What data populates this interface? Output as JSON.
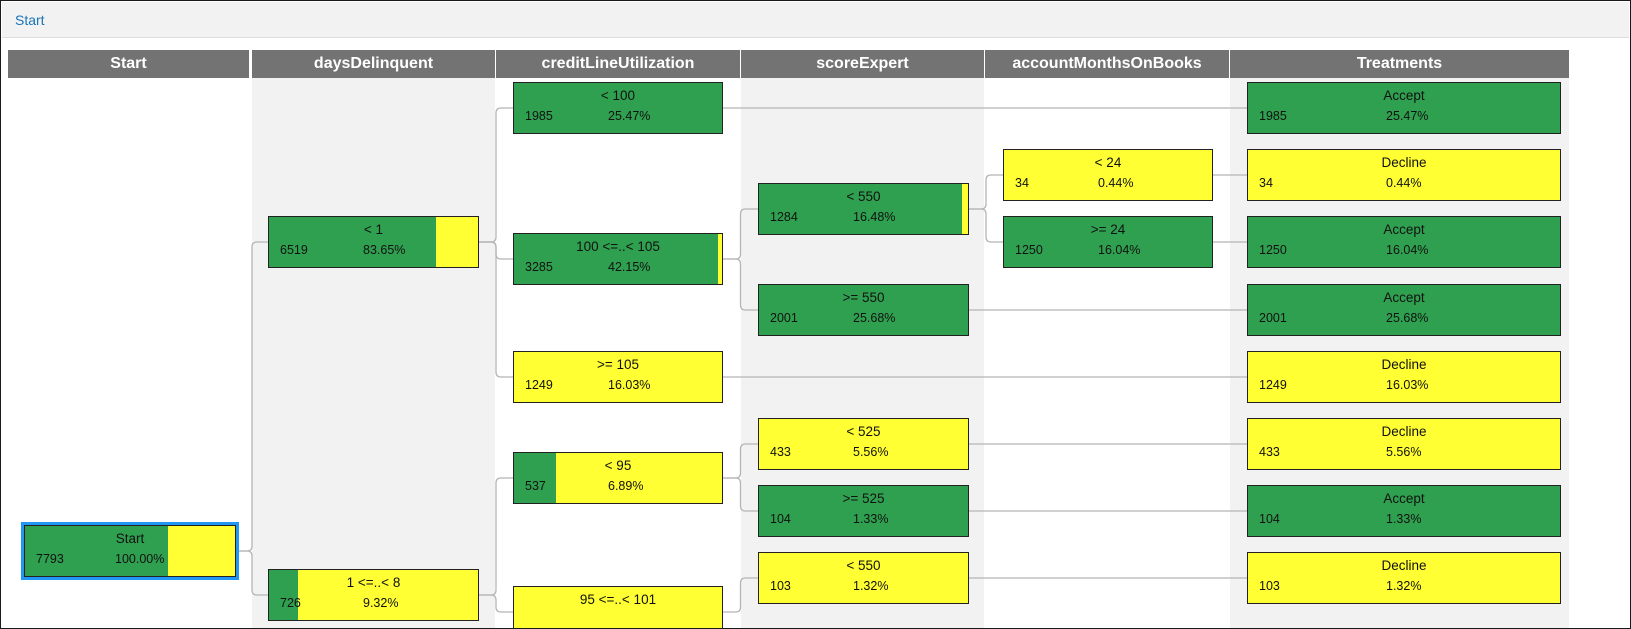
{
  "breadcrumb": {
    "label": "Start"
  },
  "colors": {
    "accept": "#2fa04f",
    "decline": "#ffff33",
    "header": "#737373",
    "link": "#b5b5b5",
    "selected": "#2196f3"
  },
  "columns": [
    {
      "id": "start",
      "label": "Start"
    },
    {
      "id": "daysDelinquent",
      "label": "daysDelinquent"
    },
    {
      "id": "creditLineUtilization",
      "label": "creditLineUtilization"
    },
    {
      "id": "scoreExpert",
      "label": "scoreExpert"
    },
    {
      "id": "accountMonthsOnBooks",
      "label": "accountMonthsOnBooks"
    },
    {
      "id": "treatments",
      "label": "Treatments"
    }
  ],
  "nodes": [
    {
      "id": "start",
      "col": 0,
      "label": "Start",
      "count": "7793",
      "pct": "100.00%",
      "accept_fraction": 0.68,
      "selected": true
    },
    {
      "id": "dd_lt1",
      "col": 1,
      "label": "< 1",
      "count": "6519",
      "pct": "83.65%",
      "accept_fraction": 0.8
    },
    {
      "id": "dd_1to8",
      "col": 1,
      "label": "1 <=..< 8",
      "count": "726",
      "pct": "9.32%",
      "accept_fraction": 0.14
    },
    {
      "id": "clu_lt100",
      "col": 2,
      "label": "< 100",
      "count": "1985",
      "pct": "25.47%",
      "accept_fraction": 1.0
    },
    {
      "id": "clu_100to105",
      "col": 2,
      "label": "100 <=..< 105",
      "count": "3285",
      "pct": "42.15%",
      "accept_fraction": 0.98
    },
    {
      "id": "clu_ge105",
      "col": 2,
      "label": ">= 105",
      "count": "1249",
      "pct": "16.03%",
      "accept_fraction": 0.0
    },
    {
      "id": "clu_lt95",
      "col": 2,
      "label": "< 95",
      "count": "537",
      "pct": "6.89%",
      "accept_fraction": 0.2
    },
    {
      "id": "clu_95to101",
      "col": 2,
      "label": "95 <=..< 101",
      "count": "",
      "pct": "",
      "accept_fraction": 0.0
    },
    {
      "id": "se_lt550",
      "col": 3,
      "label": "< 550",
      "count": "1284",
      "pct": "16.48%",
      "accept_fraction": 0.97
    },
    {
      "id": "se_ge550",
      "col": 3,
      "label": ">= 550",
      "count": "2001",
      "pct": "25.68%",
      "accept_fraction": 1.0
    },
    {
      "id": "se_lt525",
      "col": 3,
      "label": "< 525",
      "count": "433",
      "pct": "5.56%",
      "accept_fraction": 0.0
    },
    {
      "id": "se_ge525",
      "col": 3,
      "label": ">= 525",
      "count": "104",
      "pct": "1.33%",
      "accept_fraction": 1.0
    },
    {
      "id": "se_lt550b",
      "col": 3,
      "label": "< 550",
      "count": "103",
      "pct": "1.32%",
      "accept_fraction": 0.0
    },
    {
      "id": "am_lt24",
      "col": 4,
      "label": "< 24",
      "count": "34",
      "pct": "0.44%",
      "accept_fraction": 0.0
    },
    {
      "id": "am_ge24",
      "col": 4,
      "label": ">= 24",
      "count": "1250",
      "pct": "16.04%",
      "accept_fraction": 1.0
    },
    {
      "id": "tr_1",
      "col": 5,
      "label": "Accept",
      "count": "1985",
      "pct": "25.47%",
      "accept_fraction": 1.0
    },
    {
      "id": "tr_2",
      "col": 5,
      "label": "Decline",
      "count": "34",
      "pct": "0.44%",
      "accept_fraction": 0.0
    },
    {
      "id": "tr_3",
      "col": 5,
      "label": "Accept",
      "count": "1250",
      "pct": "16.04%",
      "accept_fraction": 1.0
    },
    {
      "id": "tr_4",
      "col": 5,
      "label": "Accept",
      "count": "2001",
      "pct": "25.68%",
      "accept_fraction": 1.0
    },
    {
      "id": "tr_5",
      "col": 5,
      "label": "Decline",
      "count": "1249",
      "pct": "16.03%",
      "accept_fraction": 0.0
    },
    {
      "id": "tr_6",
      "col": 5,
      "label": "Decline",
      "count": "433",
      "pct": "5.56%",
      "accept_fraction": 0.0
    },
    {
      "id": "tr_7",
      "col": 5,
      "label": "Accept",
      "count": "104",
      "pct": "1.33%",
      "accept_fraction": 1.0
    },
    {
      "id": "tr_8",
      "col": 5,
      "label": "Decline",
      "count": "103",
      "pct": "1.32%",
      "accept_fraction": 0.0
    }
  ],
  "edges": [
    [
      "start",
      "dd_lt1"
    ],
    [
      "start",
      "dd_1to8"
    ],
    [
      "dd_lt1",
      "clu_lt100"
    ],
    [
      "dd_lt1",
      "clu_100to105"
    ],
    [
      "dd_lt1",
      "clu_ge105"
    ],
    [
      "dd_1to8",
      "clu_lt95"
    ],
    [
      "dd_1to8",
      "clu_95to101"
    ],
    [
      "clu_lt100",
      "tr_1"
    ],
    [
      "clu_100to105",
      "se_lt550"
    ],
    [
      "clu_100to105",
      "se_ge550"
    ],
    [
      "clu_ge105",
      "tr_5"
    ],
    [
      "clu_lt95",
      "se_lt525"
    ],
    [
      "clu_lt95",
      "se_ge525"
    ],
    [
      "clu_95to101",
      "se_lt550b"
    ],
    [
      "se_lt550",
      "am_lt24"
    ],
    [
      "se_lt550",
      "am_ge24"
    ],
    [
      "se_ge550",
      "tr_4"
    ],
    [
      "se_lt525",
      "tr_6"
    ],
    [
      "se_ge525",
      "tr_7"
    ],
    [
      "se_lt550b",
      "tr_8"
    ],
    [
      "am_lt24",
      "tr_2"
    ],
    [
      "am_ge24",
      "tr_3"
    ]
  ]
}
